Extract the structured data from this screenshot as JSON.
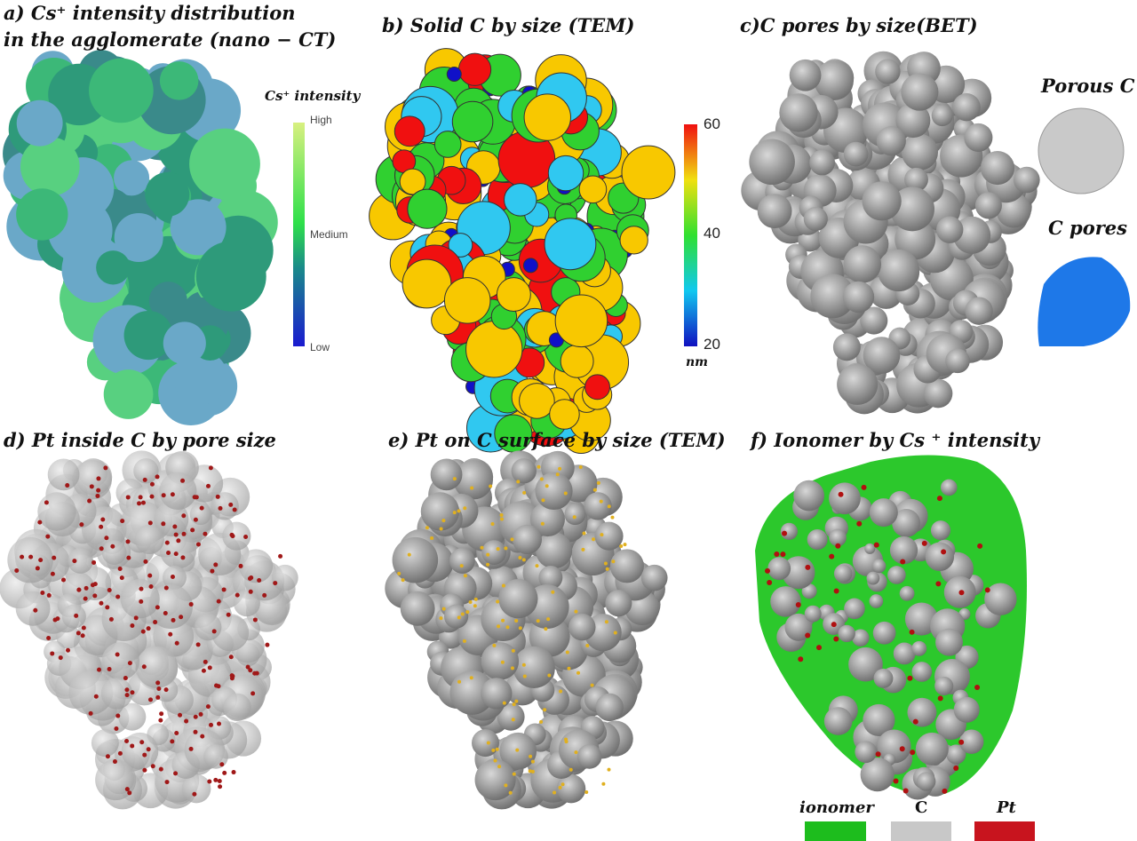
{
  "panels": {
    "a": {
      "title_line1": "a) Cs⁺ intensity distribution",
      "title_line2": "in the agglomerate (nano − CT)",
      "colorbar_title": "Cs⁺ intensity",
      "colorbar_labels": [
        "High",
        "Medium",
        "Low"
      ]
    },
    "b": {
      "title": "b) Solid C by size (TEM)",
      "colorbar_ticks": [
        "60",
        "40",
        "20"
      ],
      "colorbar_unit": "nm"
    },
    "c": {
      "title": "c)C pores by size(BET)",
      "inset_porous_label": "Porous C",
      "inset_pores_label": "C pores"
    },
    "d": {
      "title": "d) Pt inside C by  pore size"
    },
    "e": {
      "title": "e) Pt on C surface by size (TEM)"
    },
    "f": {
      "title": "f) Ionomer by Cs ⁺ intensity"
    }
  },
  "legend": [
    {
      "label": "ionomer",
      "color": "#1dbd1d"
    },
    {
      "label": "C",
      "color": "#c8c8c8"
    },
    {
      "label": "Pt",
      "color": "#c8141e"
    }
  ]
}
